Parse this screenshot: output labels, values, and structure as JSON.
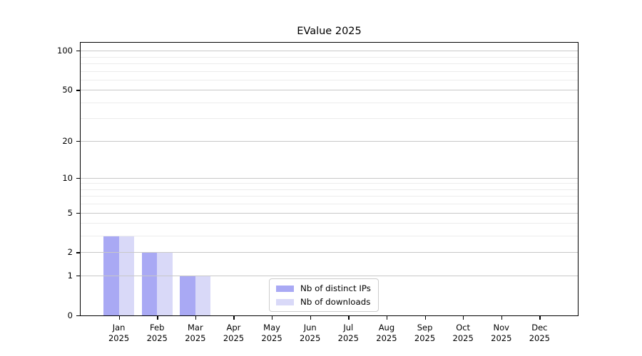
{
  "chart_data": {
    "type": "bar",
    "title": "EValue 2025",
    "x_tick_months": [
      "Jan",
      "Feb",
      "Mar",
      "Apr",
      "May",
      "Jun",
      "Jul",
      "Aug",
      "Sep",
      "Oct",
      "Nov",
      "Dec"
    ],
    "x_tick_year": "2025",
    "categories": [
      "Jan 2025",
      "Feb 2025",
      "Mar 2025",
      "Apr 2025",
      "May 2025",
      "Jun 2025",
      "Jul 2025",
      "Aug 2025",
      "Sep 2025",
      "Oct 2025",
      "Nov 2025",
      "Dec 2025"
    ],
    "series": [
      {
        "name": "Nb of distinct IPs",
        "color": "#a9a9f4",
        "values": [
          3,
          2,
          1,
          0,
          0,
          0,
          0,
          0,
          0,
          0,
          0,
          0
        ]
      },
      {
        "name": "Nb of downloads",
        "color": "#d9d9f8",
        "values": [
          3,
          2,
          1,
          0,
          0,
          0,
          0,
          0,
          0,
          0,
          0,
          0
        ]
      }
    ],
    "y_scale": "log10(value+1)",
    "y_major_ticks": [
      0,
      1,
      2,
      5,
      10,
      20,
      50,
      100
    ],
    "y_minor_ticks": [
      3,
      4,
      6,
      7,
      8,
      9,
      30,
      40,
      60,
      70,
      80,
      90
    ],
    "ylim": [
      0,
      115
    ],
    "grid": "horizontal, grid drawn above bars",
    "legend_position": "lower center",
    "colors": {
      "major_grid": "#c8c8c8",
      "minor_grid": "#ececec",
      "spine": "#000000",
      "text": "#000000",
      "background": "#ffffff"
    }
  }
}
